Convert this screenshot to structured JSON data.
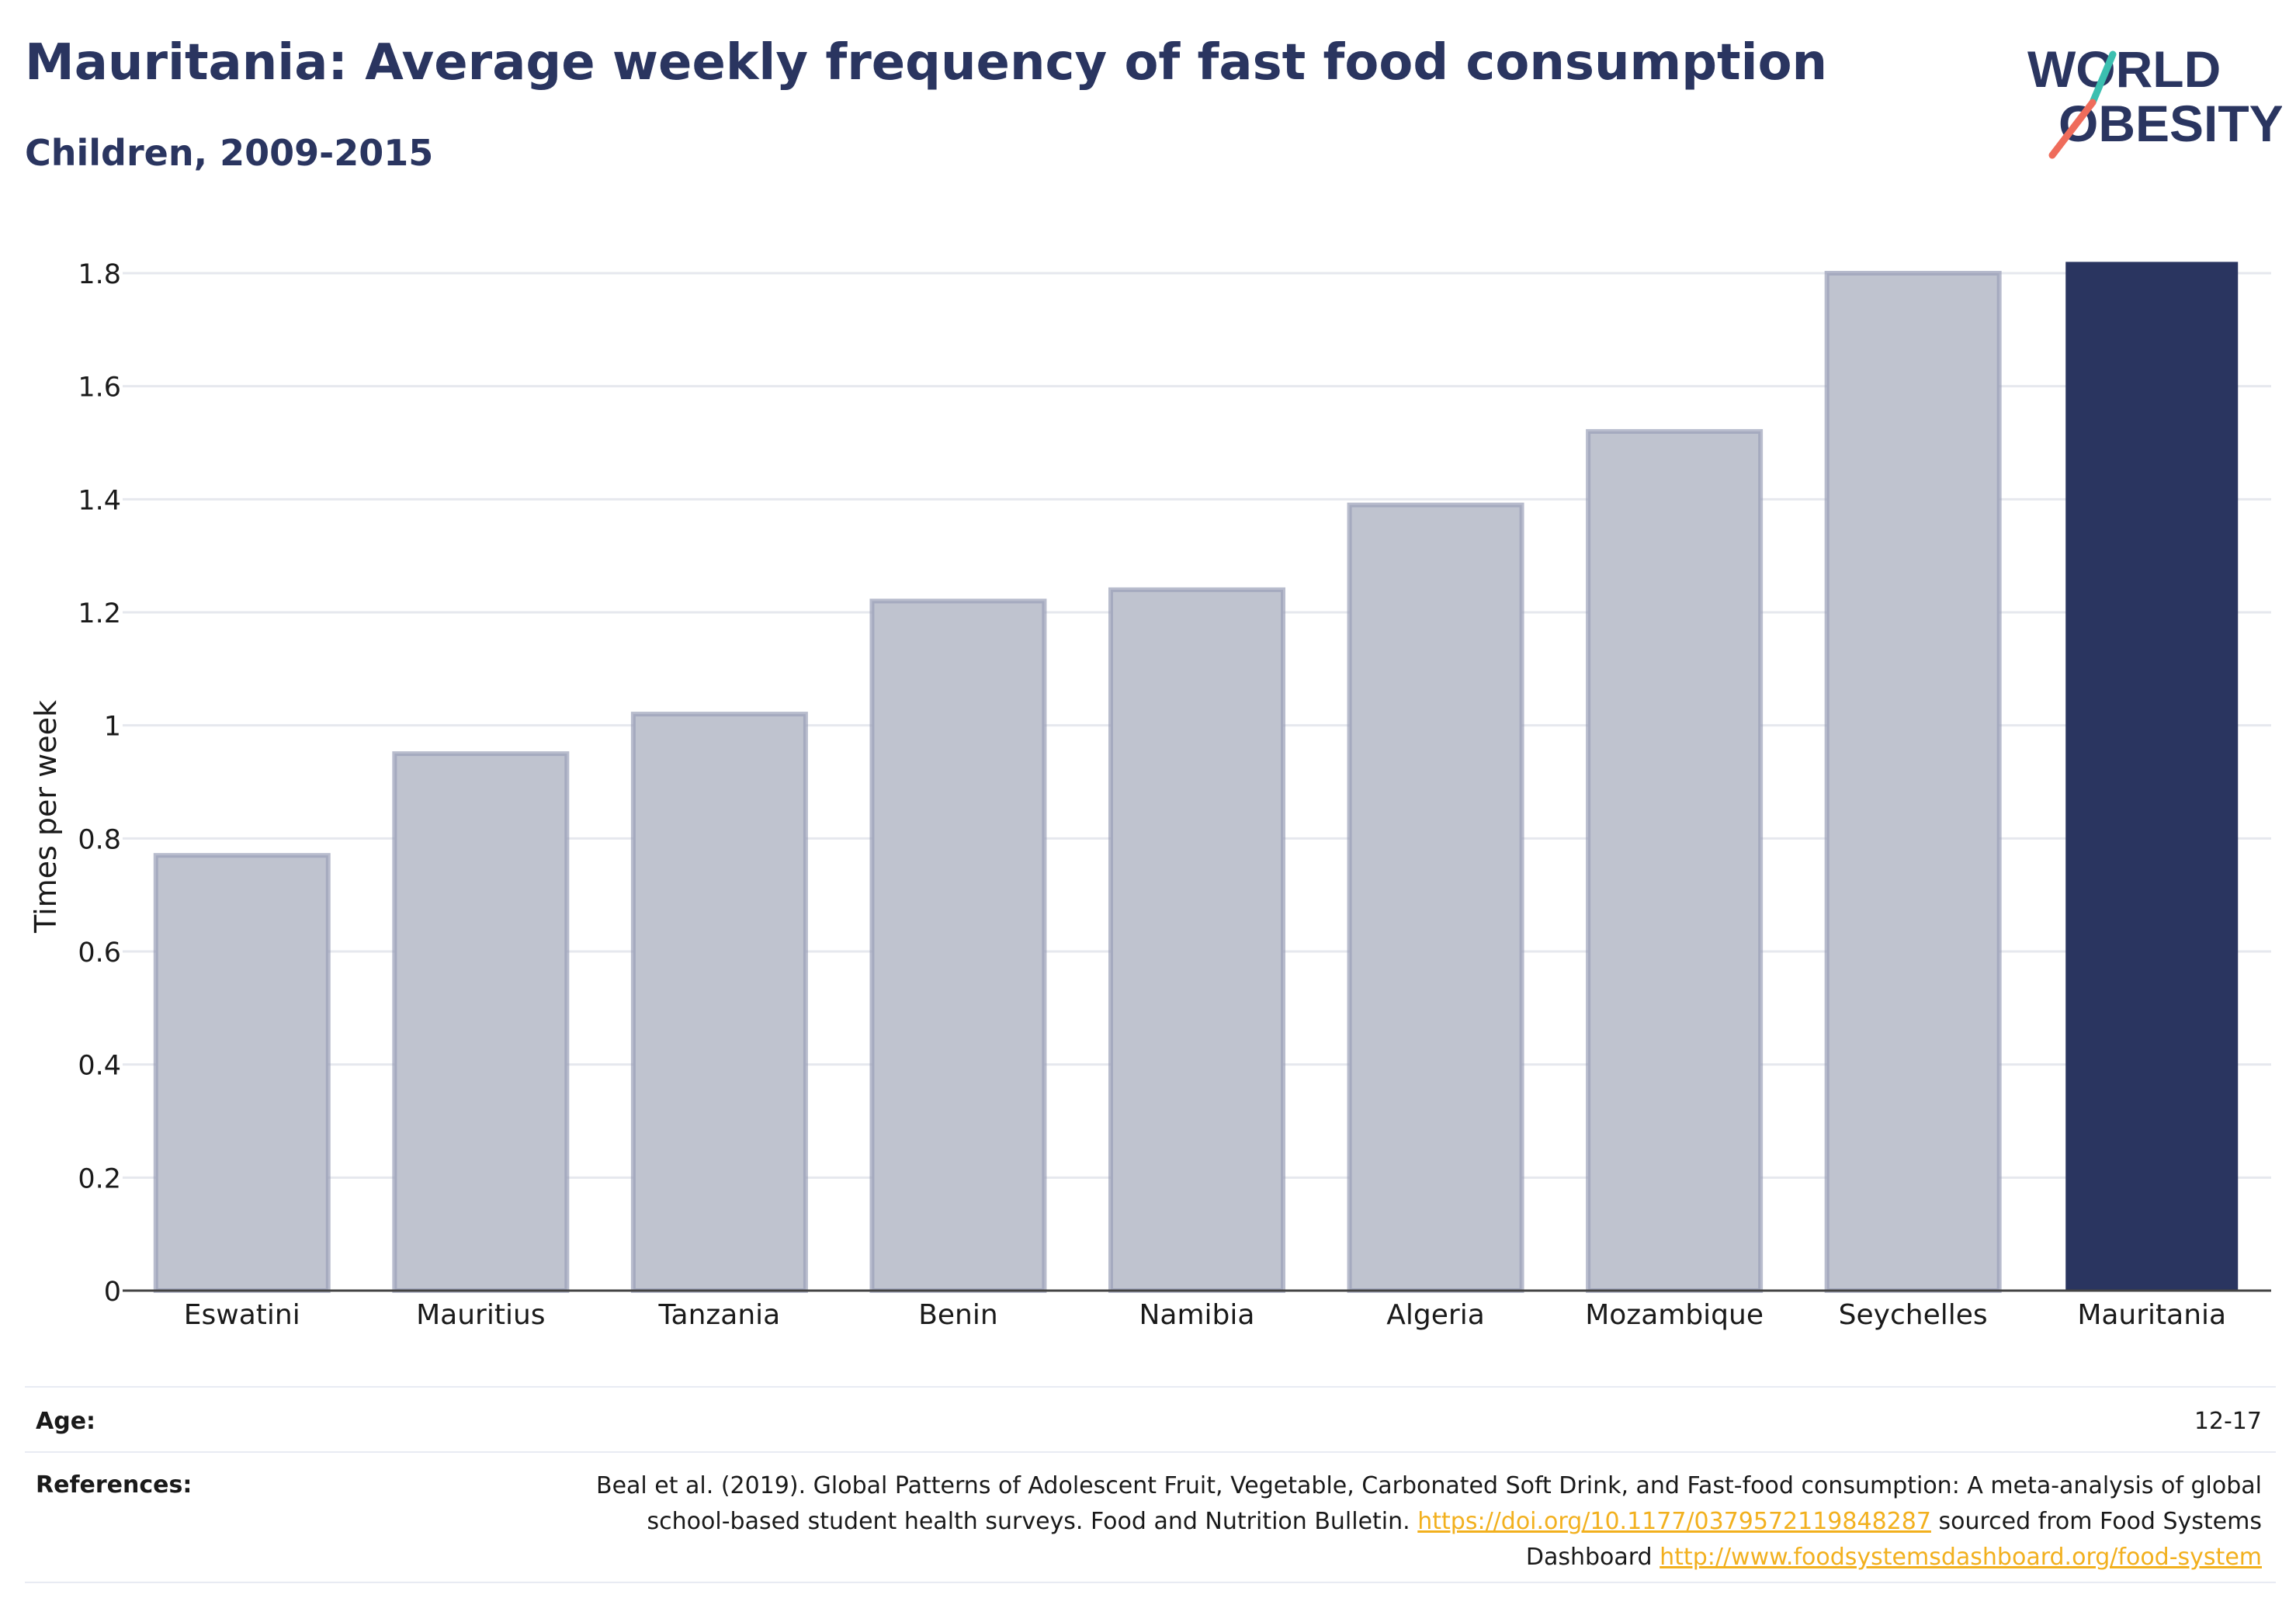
{
  "header": {
    "title": "Mauritania: Average weekly frequency of fast food consumption",
    "subtitle": "Children, 2009-2015",
    "logo_line1": "WORLD",
    "logo_line2": "OBESITY"
  },
  "colors": {
    "highlight": "#2a3560",
    "other_bar": "#bfc3cf",
    "other_bar_border": "#9aa0b8",
    "logo_teal": "#3bbfb0",
    "logo_coral": "#ef6c5b",
    "link": "#f2b01e"
  },
  "chart_data": {
    "type": "bar",
    "categories": [
      "Eswatini",
      "Mauritius",
      "Tanzania",
      "Benin",
      "Namibia",
      "Algeria",
      "Mozambique",
      "Seychelles",
      "Mauritania"
    ],
    "values": [
      0.77,
      0.95,
      1.02,
      1.22,
      1.24,
      1.39,
      1.52,
      1.8,
      1.82
    ],
    "highlight": "Mauritania",
    "ylabel": "Times per week",
    "ylim": [
      0,
      1.8
    ],
    "yticks": [
      "0",
      "0.2",
      "0.4",
      "0.6",
      "0.8",
      "1",
      "1.2",
      "1.4",
      "1.6",
      "1.8"
    ],
    "grid": true
  },
  "footer": {
    "age_label": "Age:",
    "age_value": "12-17",
    "references_label": "References:",
    "reference_text_1": "Beal et al. (2019). Global Patterns of Adolescent Fruit, Vegetable, Carbonated Soft Drink, and Fast-food consumption: A meta-analysis of global school-based student health surveys. Food and Nutrition Bulletin.",
    "reference_link_1": "https://doi.org/10.1177/0379572119848287",
    "reference_text_2": "sourced from Food Systems Dashboard",
    "reference_link_2": "http://www.foodsystemsdashboard.org/food-system"
  }
}
